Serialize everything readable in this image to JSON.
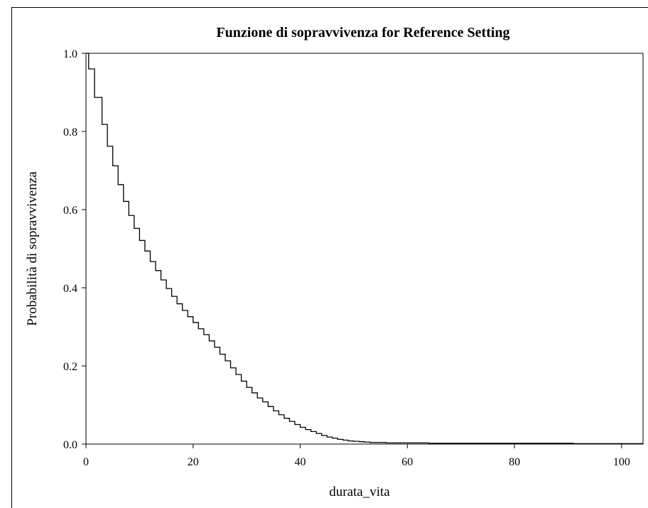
{
  "chart_data": {
    "type": "line",
    "step": true,
    "title": "Funzione di sopravvivenza for Reference Setting",
    "xlabel": "durata_vita",
    "ylabel": "Probabilità di sopravvivenza",
    "xlim": [
      0,
      104
    ],
    "ylim": [
      0,
      1.0
    ],
    "xticks": [
      0,
      20,
      40,
      60,
      80,
      100
    ],
    "xtick_labels": [
      "0",
      "20",
      "40",
      "60",
      "80",
      "100"
    ],
    "yticks": [
      0.0,
      0.2,
      0.4,
      0.6,
      0.8,
      1.0
    ],
    "ytick_labels": [
      "0.0",
      "0.2",
      "0.4",
      "0.6",
      "0.8",
      "1.0"
    ],
    "grid": false,
    "series": [
      {
        "color": "#000000",
        "x": [
          0,
          0.5,
          1.6,
          3,
          4,
          5,
          6,
          7,
          8,
          9,
          10,
          11,
          12,
          13,
          14,
          15,
          16,
          17,
          18,
          19,
          20,
          21,
          22,
          23,
          24,
          25,
          26,
          27,
          28,
          29,
          30,
          31,
          32,
          33,
          34,
          35,
          36,
          37,
          38,
          39,
          40,
          41,
          42,
          43,
          44,
          45,
          46,
          47,
          48,
          49,
          50,
          51,
          52,
          53,
          56,
          64,
          91,
          104
        ],
        "y": [
          1.0,
          0.96,
          0.887,
          0.818,
          0.762,
          0.712,
          0.664,
          0.621,
          0.585,
          0.552,
          0.521,
          0.494,
          0.467,
          0.444,
          0.42,
          0.398,
          0.378,
          0.359,
          0.342,
          0.326,
          0.311,
          0.295,
          0.28,
          0.264,
          0.248,
          0.23,
          0.213,
          0.195,
          0.178,
          0.161,
          0.145,
          0.131,
          0.118,
          0.108,
          0.096,
          0.085,
          0.075,
          0.066,
          0.058,
          0.05,
          0.043,
          0.037,
          0.032,
          0.027,
          0.022,
          0.018,
          0.015,
          0.012,
          0.01,
          0.008,
          0.007,
          0.006,
          0.005,
          0.004,
          0.003,
          0.002,
          0.001,
          0.001
        ]
      }
    ]
  }
}
